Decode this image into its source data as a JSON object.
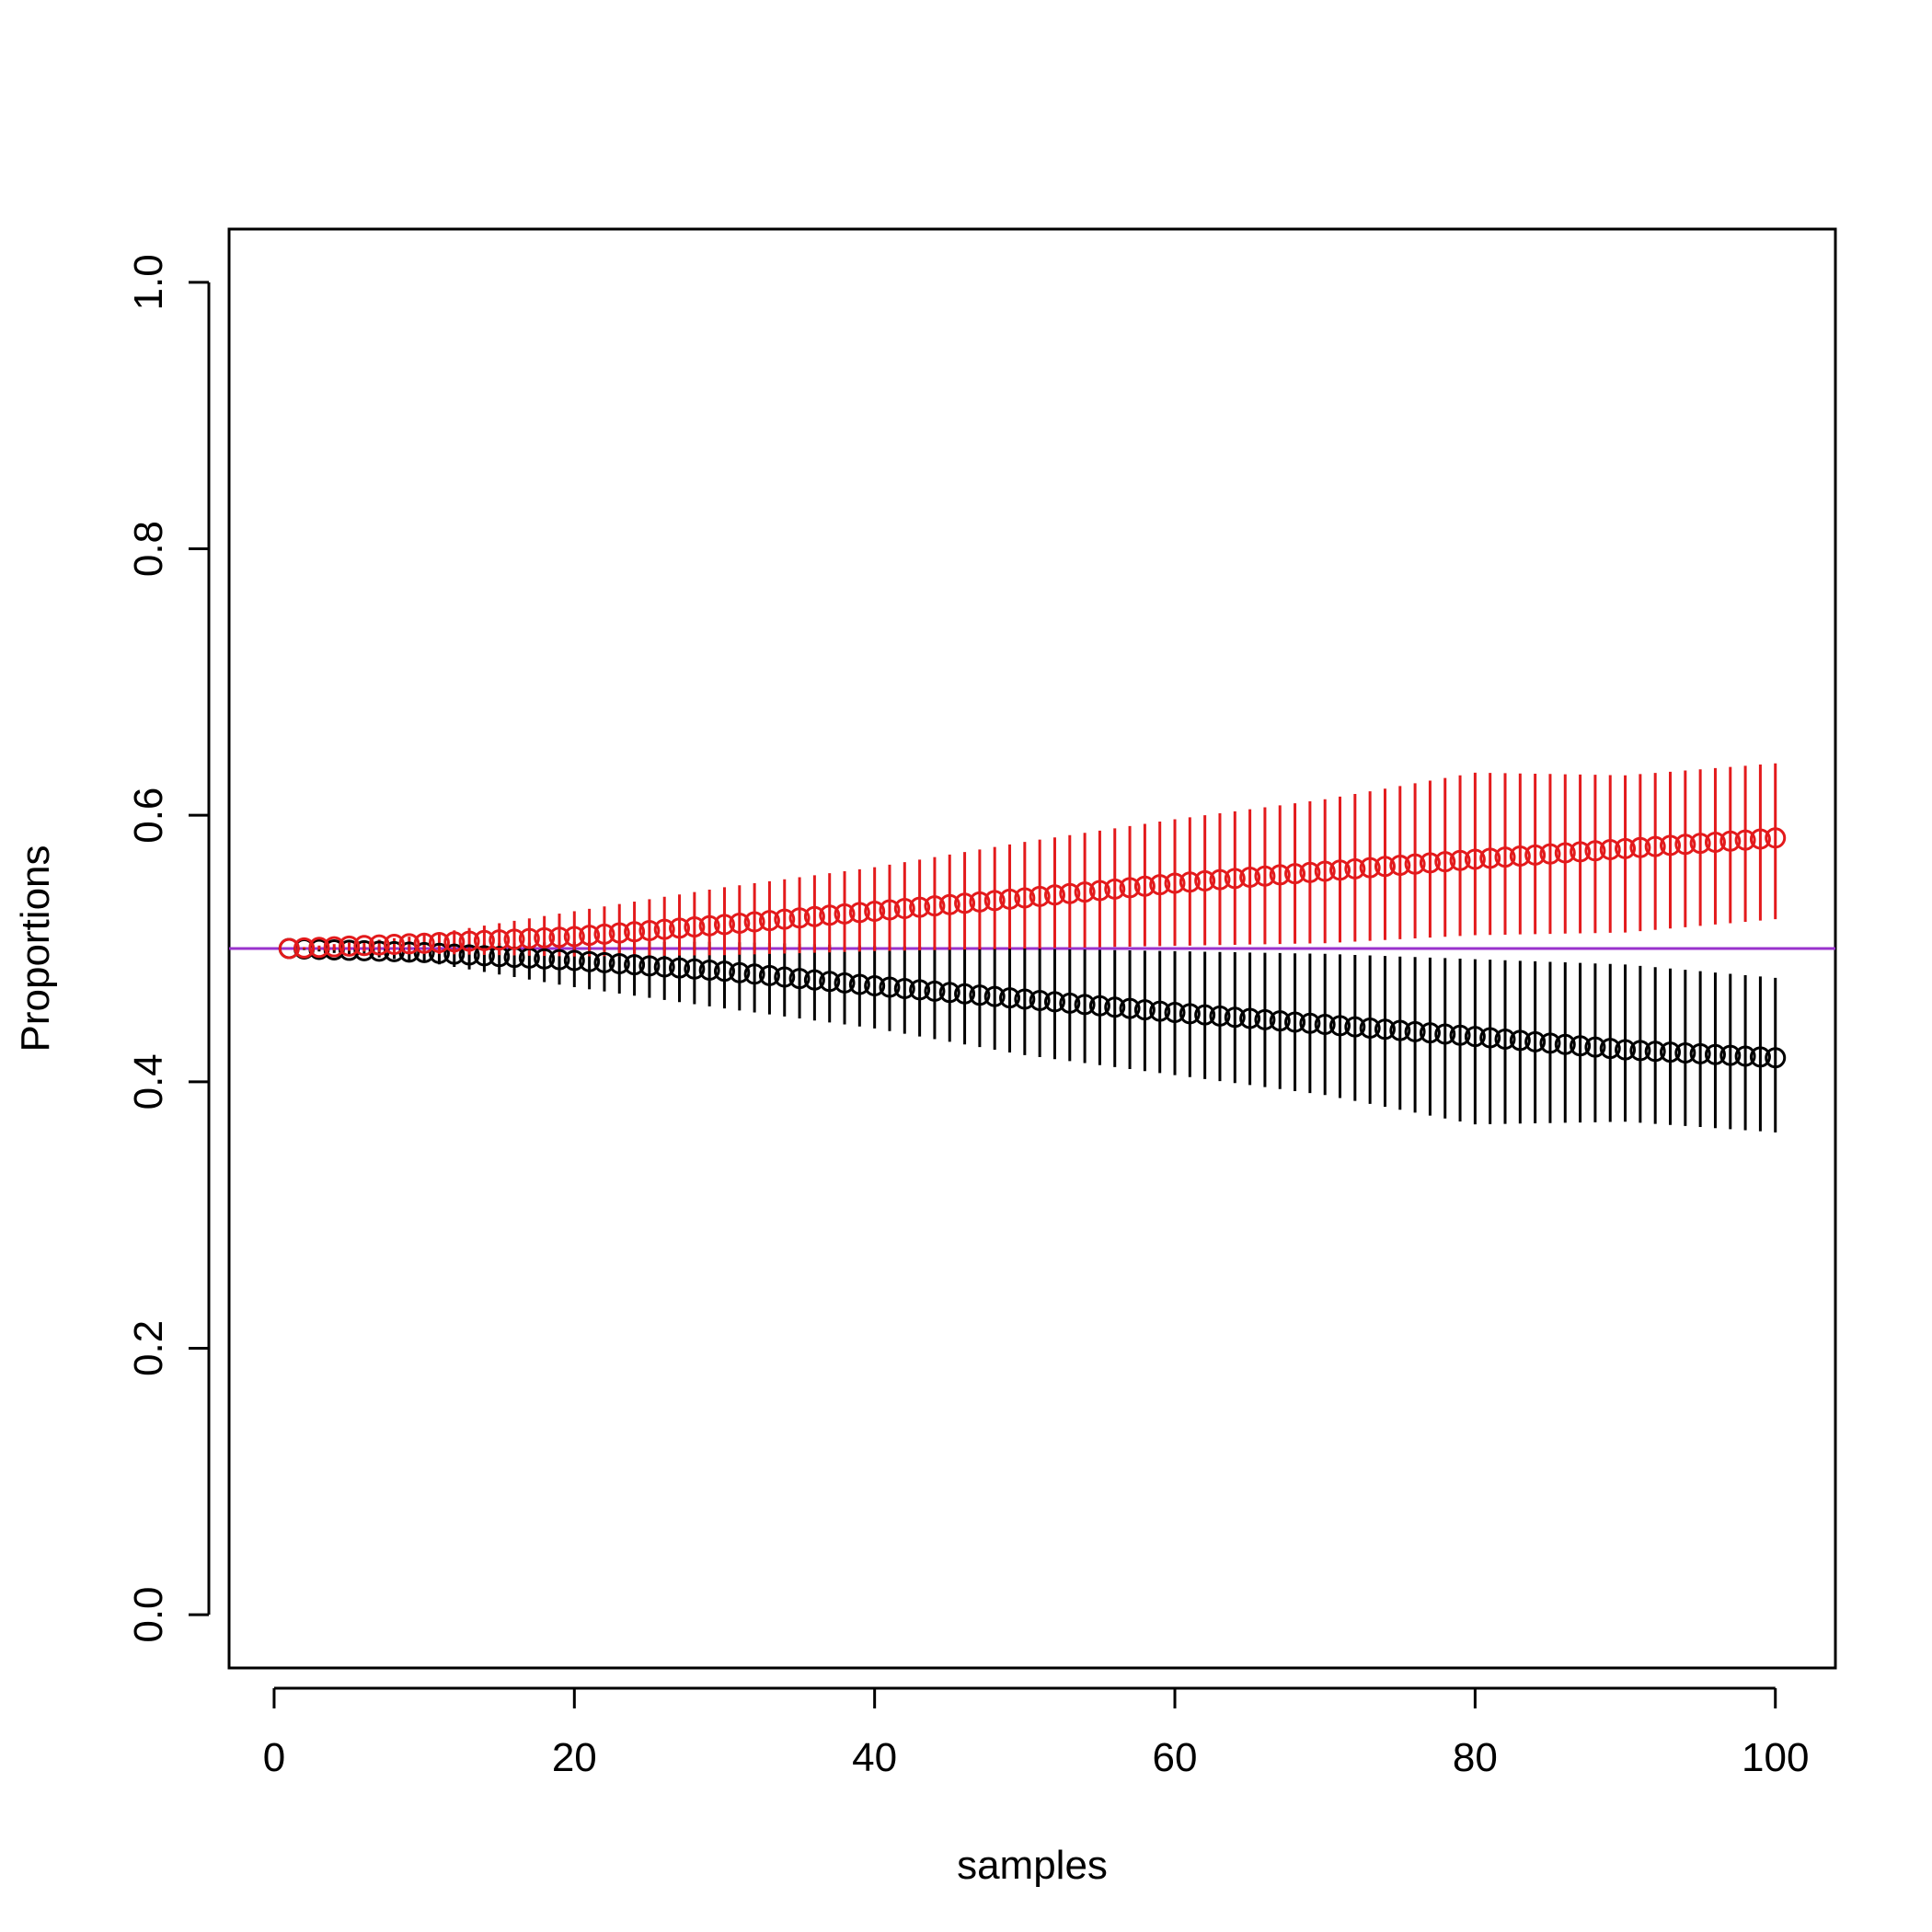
{
  "chart_data": {
    "type": "scatter",
    "xlabel": "samples",
    "ylabel": "Proportions",
    "xlim": [
      -3,
      104
    ],
    "ylim": [
      -0.04,
      1.04
    ],
    "x_ticks": [
      0,
      20,
      40,
      60,
      80,
      100
    ],
    "y_ticks": [
      0.0,
      0.2,
      0.4,
      0.6,
      0.8,
      1.0
    ],
    "x_tick_labels": [
      "0",
      "20",
      "40",
      "60",
      "80",
      "100"
    ],
    "y_tick_labels": [
      "0.0",
      "0.2",
      "0.4",
      "0.6",
      "0.8",
      "1.0"
    ],
    "reference_line": {
      "y": 0.5,
      "color": "#9933cc"
    },
    "series": [
      {
        "color": "#e31a1c",
        "marker": "open-circle",
        "x_start": 1,
        "x_end": 100,
        "description_points": [
          {
            "x": 1,
            "y": 0.5,
            "err_low": 0.5,
            "err_high": 0.5
          },
          {
            "x": 10,
            "y": 0.504,
            "err_low": 0.496,
            "err_high": 0.51
          },
          {
            "x": 20,
            "y": 0.509,
            "err_low": 0.494,
            "err_high": 0.528
          },
          {
            "x": 30,
            "y": 0.518,
            "err_low": 0.495,
            "err_high": 0.546
          },
          {
            "x": 40,
            "y": 0.528,
            "err_low": 0.498,
            "err_high": 0.561
          },
          {
            "x": 50,
            "y": 0.538,
            "err_low": 0.5,
            "err_high": 0.58
          },
          {
            "x": 60,
            "y": 0.549,
            "err_low": 0.502,
            "err_high": 0.597
          },
          {
            "x": 70,
            "y": 0.558,
            "err_low": 0.504,
            "err_high": 0.612
          },
          {
            "x": 80,
            "y": 0.567,
            "err_low": 0.51,
            "err_high": 0.632
          },
          {
            "x": 90,
            "y": 0.575,
            "err_low": 0.512,
            "err_high": 0.63
          },
          {
            "x": 100,
            "y": 0.583,
            "err_low": 0.522,
            "err_high": 0.639
          }
        ]
      },
      {
        "color": "#000000",
        "marker": "open-circle",
        "x_start": 1,
        "x_end": 100,
        "description_points": [
          {
            "x": 1,
            "y": 0.5,
            "err_low": 0.5,
            "err_high": 0.5
          },
          {
            "x": 10,
            "y": 0.497,
            "err_low": 0.49,
            "err_high": 0.503
          },
          {
            "x": 20,
            "y": 0.491,
            "err_low": 0.471,
            "err_high": 0.505
          },
          {
            "x": 30,
            "y": 0.483,
            "err_low": 0.455,
            "err_high": 0.505
          },
          {
            "x": 40,
            "y": 0.472,
            "err_low": 0.44,
            "err_high": 0.502
          },
          {
            "x": 50,
            "y": 0.462,
            "err_low": 0.42,
            "err_high": 0.5
          },
          {
            "x": 60,
            "y": 0.452,
            "err_low": 0.405,
            "err_high": 0.498
          },
          {
            "x": 70,
            "y": 0.443,
            "err_low": 0.39,
            "err_high": 0.496
          },
          {
            "x": 80,
            "y": 0.434,
            "err_low": 0.368,
            "err_high": 0.492
          },
          {
            "x": 90,
            "y": 0.424,
            "err_low": 0.37,
            "err_high": 0.488
          },
          {
            "x": 100,
            "y": 0.418,
            "err_low": 0.362,
            "err_high": 0.478
          }
        ]
      }
    ]
  }
}
